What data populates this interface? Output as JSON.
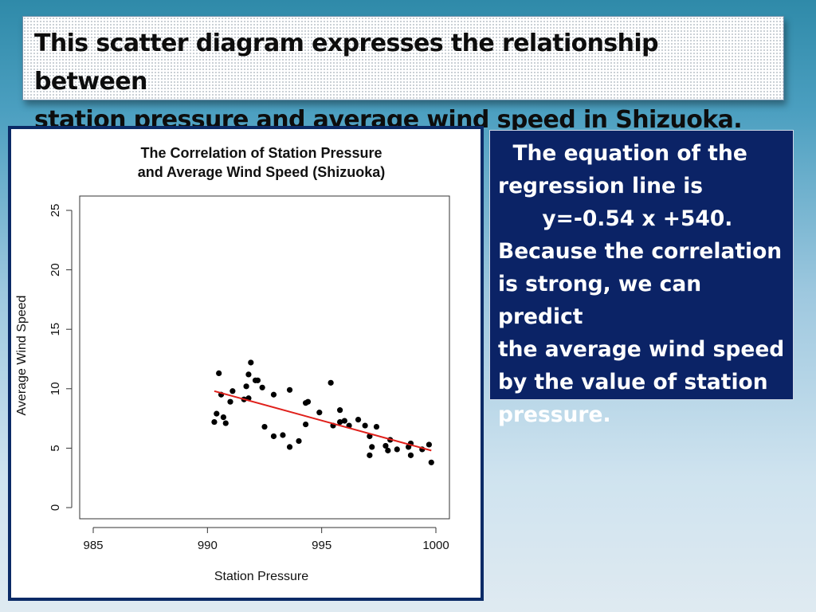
{
  "slide": {
    "title_line1": "This scatter diagram expresses the relationship between",
    "title_line2": "station pressure and average wind speed in Shizuoka.",
    "note_lines": [
      "  The equation of the",
      "regression line is",
      "      y=-0.54 x +540.",
      "Because the correlation",
      "is strong, we can predict",
      "the average wind speed",
      "by the value of station",
      "pressure."
    ]
  },
  "chart_data": {
    "type": "scatter",
    "title_line1": "The Correlation of Station Pressure",
    "title_line2": "and Average Wind Speed (Shizuoka)",
    "xlabel": "Station Pressure",
    "ylabel": "Average Wind Speed",
    "xlim": [
      985,
      1000
    ],
    "ylim": [
      0,
      25
    ],
    "xticks": [
      985,
      990,
      995,
      1000
    ],
    "yticks": [
      0,
      5,
      10,
      15,
      20,
      25
    ],
    "grid": false,
    "point_color": "#000000",
    "regression_color": "#e0201b",
    "points": [
      [
        990.3,
        7.2
      ],
      [
        990.4,
        7.9
      ],
      [
        990.5,
        11.3
      ],
      [
        990.6,
        9.5
      ],
      [
        990.7,
        7.6
      ],
      [
        990.8,
        7.1
      ],
      [
        991.0,
        8.9
      ],
      [
        991.1,
        9.8
      ],
      [
        991.6,
        9.1
      ],
      [
        991.7,
        10.2
      ],
      [
        991.8,
        11.2
      ],
      [
        991.8,
        9.2
      ],
      [
        991.9,
        12.2
      ],
      [
        992.1,
        10.7
      ],
      [
        992.2,
        10.7
      ],
      [
        992.4,
        10.1
      ],
      [
        992.5,
        6.8
      ],
      [
        992.9,
        6.0
      ],
      [
        992.9,
        9.5
      ],
      [
        993.3,
        6.1
      ],
      [
        993.6,
        5.1
      ],
      [
        993.6,
        9.9
      ],
      [
        994.0,
        5.6
      ],
      [
        994.3,
        7.0
      ],
      [
        994.3,
        8.8
      ],
      [
        994.4,
        8.9
      ],
      [
        994.9,
        8.0
      ],
      [
        995.4,
        10.5
      ],
      [
        995.5,
        6.9
      ],
      [
        995.8,
        8.2
      ],
      [
        995.8,
        7.2
      ],
      [
        996.0,
        7.3
      ],
      [
        996.2,
        6.9
      ],
      [
        996.6,
        7.4
      ],
      [
        996.9,
        6.9
      ],
      [
        997.1,
        6.0
      ],
      [
        997.1,
        4.4
      ],
      [
        997.2,
        5.1
      ],
      [
        997.4,
        6.8
      ],
      [
        997.8,
        5.2
      ],
      [
        997.9,
        4.8
      ],
      [
        998.0,
        5.7
      ],
      [
        998.3,
        4.9
      ],
      [
        998.8,
        5.1
      ],
      [
        998.9,
        4.4
      ],
      [
        998.9,
        5.4
      ],
      [
        999.4,
        4.9
      ],
      [
        999.7,
        5.3
      ],
      [
        999.8,
        3.8
      ]
    ],
    "regression": {
      "slope": -0.54,
      "intercept": 540,
      "x_range": [
        990.3,
        999.8
      ],
      "y_at_x_range": [
        9.8,
        4.8
      ]
    }
  }
}
